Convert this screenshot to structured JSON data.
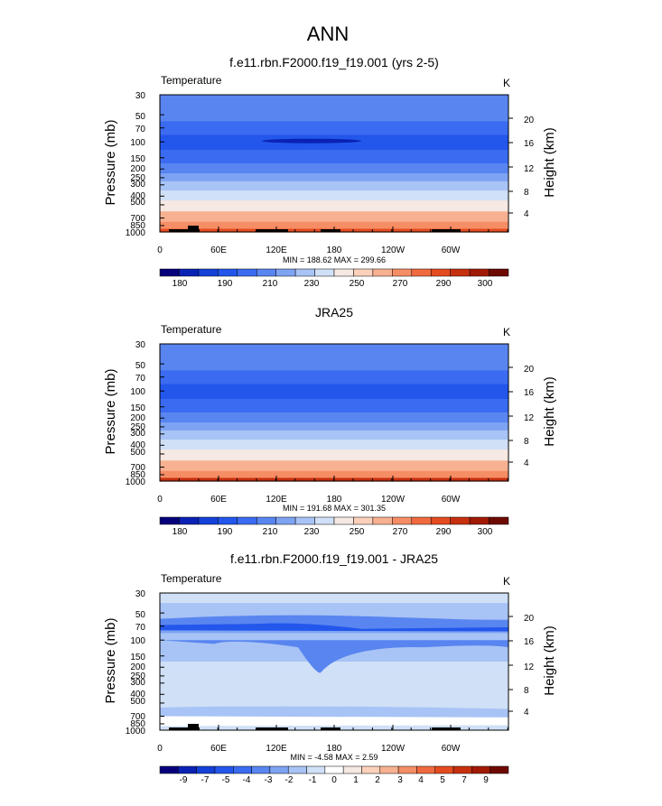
{
  "page": {
    "title": "ANN"
  },
  "colors": {
    "temp_scale": [
      "#06007a",
      "#0a22b4",
      "#1441d8",
      "#2356eb",
      "#3a6bf0",
      "#5885f0",
      "#7ea3f3",
      "#a8c3f5",
      "#cfe0f7",
      "#f6e8e2",
      "#fbd1bb",
      "#f7b191",
      "#f58d65",
      "#f06a3f",
      "#e44b1f",
      "#c7300f",
      "#a11a05",
      "#6e0902"
    ],
    "diff_scale": [
      "#06007a",
      "#0a22b4",
      "#1441d8",
      "#2356eb",
      "#3a6bf0",
      "#5885f0",
      "#7ea3f3",
      "#a8c3f5",
      "#cfe0f7",
      "#ffffff",
      "#f6e8e2",
      "#fbd1bb",
      "#f7b191",
      "#f58d65",
      "#f06a3f",
      "#e44b1f",
      "#c7300f",
      "#a11a05",
      "#6e0902"
    ],
    "topography": "#000000"
  },
  "chart_data": [
    {
      "type": "heatmap",
      "title": "f.e11.rbn.F2000.f19_f19.001 (yrs 2-5)",
      "left_label": "Temperature",
      "right_label": "K",
      "ylabel": "Pressure (mb)",
      "ylabel_right": "Height (km)",
      "y_ticks": [
        "30",
        "50",
        "70",
        "100",
        "150",
        "200",
        "250",
        "300",
        "400",
        "500",
        "700",
        "850",
        "1000"
      ],
      "y_ticks_right": [
        "20",
        "16",
        "12",
        "8",
        "4"
      ],
      "x_ticks": [
        "0",
        "60E",
        "120E",
        "180",
        "120W",
        "60W"
      ],
      "minmax": "MIN = 188.62  MAX = 299.66",
      "colorbar_labels": [
        "180",
        "190",
        "210",
        "230",
        "250",
        "270",
        "290",
        "300"
      ],
      "topography": true,
      "cold_core": true,
      "levels": [
        {
          "p": 30,
          "v": 212
        },
        {
          "p": 50,
          "v": 210
        },
        {
          "p": 70,
          "v": 200
        },
        {
          "p": 100,
          "v": 196
        },
        {
          "p": 150,
          "v": 205
        },
        {
          "p": 200,
          "v": 214
        },
        {
          "p": 250,
          "v": 224
        },
        {
          "p": 300,
          "v": 232
        },
        {
          "p": 400,
          "v": 245
        },
        {
          "p": 500,
          "v": 256
        },
        {
          "p": 700,
          "v": 272
        },
        {
          "p": 850,
          "v": 283
        },
        {
          "p": 1000,
          "v": 294
        }
      ]
    },
    {
      "type": "heatmap",
      "title": "JRA25",
      "left_label": "Temperature",
      "right_label": "K",
      "ylabel": "Pressure (mb)",
      "ylabel_right": "Height (km)",
      "y_ticks": [
        "30",
        "50",
        "70",
        "100",
        "150",
        "200",
        "250",
        "300",
        "400",
        "500",
        "700",
        "850",
        "1000"
      ],
      "y_ticks_right": [
        "20",
        "16",
        "12",
        "8",
        "4"
      ],
      "x_ticks": [
        "0",
        "60E",
        "120E",
        "180",
        "120W",
        "60W"
      ],
      "minmax": "MIN = 191.68  MAX = 301.35",
      "colorbar_labels": [
        "180",
        "190",
        "210",
        "230",
        "250",
        "270",
        "290",
        "300"
      ],
      "topography": false,
      "cold_core": false,
      "levels": [
        {
          "p": 30,
          "v": 218
        },
        {
          "p": 50,
          "v": 212
        },
        {
          "p": 70,
          "v": 204
        },
        {
          "p": 100,
          "v": 198
        },
        {
          "p": 150,
          "v": 206
        },
        {
          "p": 200,
          "v": 214
        },
        {
          "p": 250,
          "v": 224
        },
        {
          "p": 300,
          "v": 233
        },
        {
          "p": 400,
          "v": 246
        },
        {
          "p": 500,
          "v": 257
        },
        {
          "p": 700,
          "v": 273
        },
        {
          "p": 850,
          "v": 284
        },
        {
          "p": 1000,
          "v": 296
        }
      ]
    },
    {
      "type": "heatmap",
      "title": "f.e11.rbn.F2000.f19_f19.001 - JRA25",
      "left_label": "Temperature",
      "right_label": "K",
      "ylabel": "Pressure (mb)",
      "ylabel_right": "Height (km)",
      "y_ticks": [
        "30",
        "50",
        "70",
        "100",
        "150",
        "200",
        "250",
        "300",
        "400",
        "500",
        "700",
        "850",
        "1000"
      ],
      "y_ticks_right": [
        "20",
        "16",
        "12",
        "8",
        "4"
      ],
      "x_ticks": [
        "0",
        "60E",
        "120E",
        "180",
        "120W",
        "60W"
      ],
      "minmax": "MIN = -4.58  MAX =  2.59",
      "colorbar_labels": [
        "-9",
        "-7",
        "-5",
        "-4",
        "-3",
        "-2",
        "-1",
        "0",
        "1",
        "2",
        "3",
        "4",
        "5",
        "7",
        "9"
      ],
      "topography": true,
      "cold_core": false,
      "levels": [
        {
          "p": 30,
          "v": -1.5
        },
        {
          "p": 50,
          "v": -2.5
        },
        {
          "p": 70,
          "v": -3.5
        },
        {
          "p": 100,
          "v": -2.5
        },
        {
          "p": 150,
          "v": -2.5
        },
        {
          "p": 200,
          "v": -1.5
        },
        {
          "p": 250,
          "v": -1.5
        },
        {
          "p": 300,
          "v": -1.5
        },
        {
          "p": 400,
          "v": -1.5
        },
        {
          "p": 500,
          "v": -1.5
        },
        {
          "p": 700,
          "v": -0.5
        },
        {
          "p": 850,
          "v": -0.5
        },
        {
          "p": 1000,
          "v": -0.5
        }
      ]
    }
  ]
}
